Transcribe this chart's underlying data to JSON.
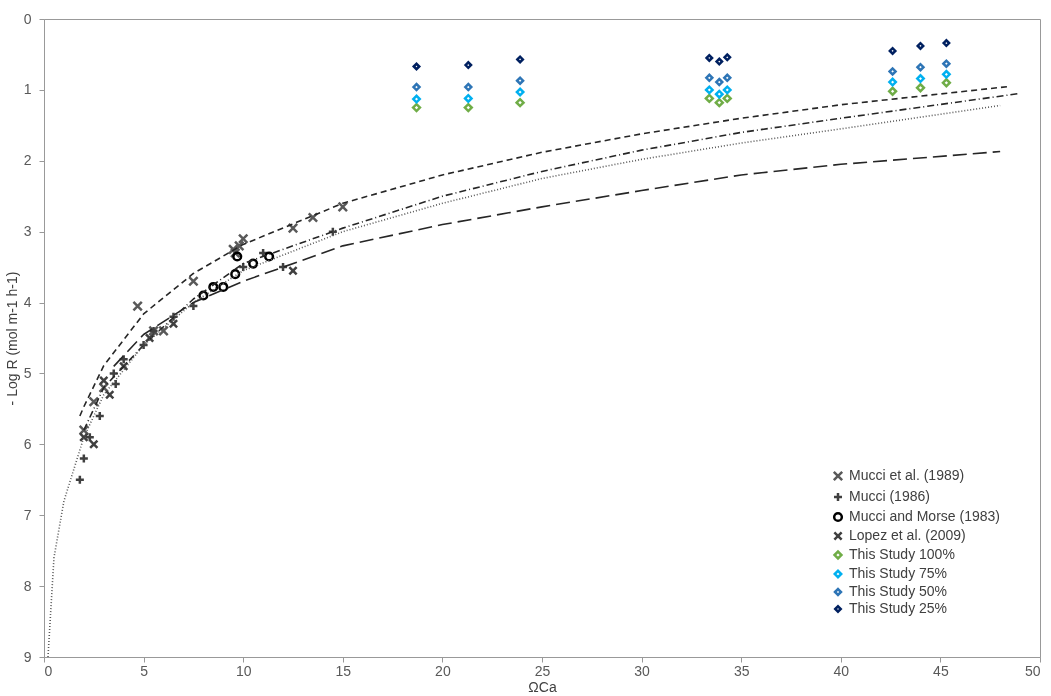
{
  "chart_data": {
    "type": "scatter",
    "xlabel": "ΩCa",
    "ylabel": "- Log R (mol m-1 h-1)",
    "xlim": [
      0,
      50
    ],
    "xticks": [
      0,
      5,
      10,
      15,
      20,
      25,
      30,
      35,
      40,
      45,
      50
    ],
    "ylim": [
      9,
      0
    ],
    "yticks": [
      0,
      1,
      2,
      3,
      4,
      5,
      6,
      7,
      8,
      9
    ],
    "grid": false,
    "legend": "bottom right",
    "series": [
      {
        "name": "Mucci et al. (1989)",
        "marker": "cross",
        "color": "#595959",
        "x": [
          2.0,
          2.5,
          3.0,
          4.7,
          5.5,
          6.0,
          7.5,
          9.5,
          9.6,
          9.8,
          10.0,
          12.5,
          13.5,
          15.0
        ],
        "values": [
          5.8,
          5.4,
          5.2,
          4.05,
          4.4,
          4.4,
          3.7,
          3.25,
          3.3,
          3.2,
          3.1,
          2.95,
          2.8,
          2.65
        ]
      },
      {
        "name": "Mucci (1986)",
        "marker": "plus",
        "color": "#404040",
        "x": [
          1.8,
          2.0,
          2.3,
          2.8,
          3.6,
          3.5,
          4.0,
          5.0,
          5.5,
          6.5,
          7.5,
          10.0,
          11.0,
          12.0,
          14.5
        ],
        "values": [
          6.5,
          6.2,
          5.9,
          5.6,
          5.15,
          5.0,
          4.8,
          4.6,
          4.4,
          4.2,
          4.05,
          3.5,
          3.3,
          3.5,
          3.0
        ]
      },
      {
        "name": "Mucci and Morse (1983)",
        "marker": "circle",
        "color": "#000000",
        "x": [
          8.0,
          8.5,
          9.0,
          9.6,
          9.7,
          10.5,
          11.3
        ],
        "values": [
          3.9,
          3.78,
          3.78,
          3.6,
          3.35,
          3.45,
          3.35
        ]
      },
      {
        "name": "Lopez et al. (2009)",
        "marker": "cross",
        "color": "#404040",
        "x": [
          2.0,
          2.5,
          3.0,
          3.3,
          4.0,
          5.3,
          6.5,
          12.5
        ],
        "values": [
          5.9,
          6.0,
          5.1,
          5.3,
          4.9,
          4.5,
          4.3,
          3.55
        ]
      },
      {
        "name": "This Study 100%",
        "marker": "diamond",
        "color": "#70ad47",
        "x": [
          18.7,
          21.3,
          23.9,
          33.4,
          33.9,
          34.3,
          42.6,
          44.0,
          45.3
        ],
        "values": [
          1.25,
          1.25,
          1.18,
          1.12,
          1.18,
          1.12,
          1.02,
          0.97,
          0.9
        ]
      },
      {
        "name": "This Study 75%",
        "marker": "diamond",
        "color": "#00b0f0",
        "x": [
          18.7,
          21.3,
          23.9,
          33.4,
          33.9,
          34.3,
          42.6,
          44.0,
          45.3
        ],
        "values": [
          1.13,
          1.12,
          1.03,
          1.0,
          1.06,
          1.0,
          0.89,
          0.84,
          0.78
        ]
      },
      {
        "name": "This Study 50%",
        "marker": "diamond",
        "color": "#2e75b6",
        "x": [
          18.7,
          21.3,
          23.9,
          33.4,
          33.9,
          34.3,
          42.6,
          44.0,
          45.3
        ],
        "values": [
          0.96,
          0.96,
          0.87,
          0.83,
          0.89,
          0.83,
          0.74,
          0.68,
          0.63
        ]
      },
      {
        "name": "This Study 25%",
        "marker": "diamond",
        "color": "#002060",
        "x": [
          18.7,
          21.3,
          23.9,
          33.4,
          33.9,
          34.3,
          42.6,
          44.0,
          45.3
        ],
        "values": [
          0.67,
          0.65,
          0.57,
          0.55,
          0.6,
          0.54,
          0.45,
          0.38,
          0.34
        ]
      },
      {
        "type": "line",
        "line_style": "dashed",
        "color": "#262626",
        "x": [
          1.8,
          2,
          3,
          5,
          7.5,
          10,
          15,
          20,
          25,
          30,
          35,
          40,
          48.5
        ],
        "values": [
          5.6,
          5.47,
          4.89,
          4.16,
          3.59,
          3.18,
          2.6,
          2.2,
          1.88,
          1.62,
          1.4,
          1.21,
          0.95
        ]
      },
      {
        "type": "line",
        "line_style": "dashdot",
        "color": "#262626",
        "x": [
          2,
          3,
          5,
          7.5,
          10,
          15,
          20,
          25,
          30,
          35,
          40,
          49
        ],
        "values": [
          5.8,
          5.2,
          4.6,
          3.95,
          3.45,
          2.95,
          2.5,
          2.15,
          1.85,
          1.6,
          1.4,
          1.05
        ]
      },
      {
        "type": "line",
        "line_style": "dotted",
        "color": "#595959",
        "x": [
          0.2,
          0.5,
          1,
          2,
          3,
          5,
          7.5,
          10,
          15,
          20,
          25,
          30,
          35,
          40,
          48
        ],
        "values": [
          9.0,
          7.6,
          6.8,
          5.9,
          5.3,
          4.6,
          4.0,
          3.55,
          3.0,
          2.6,
          2.25,
          1.98,
          1.75,
          1.55,
          1.22
        ]
      },
      {
        "type": "line",
        "line_style": "longdash",
        "color": "#262626",
        "x": [
          3.5,
          5,
          7.5,
          10,
          15,
          20,
          25,
          30,
          35,
          40,
          48
        ],
        "values": [
          4.9,
          4.45,
          4.0,
          3.7,
          3.2,
          2.9,
          2.65,
          2.42,
          2.2,
          2.05,
          1.87
        ]
      }
    ]
  }
}
